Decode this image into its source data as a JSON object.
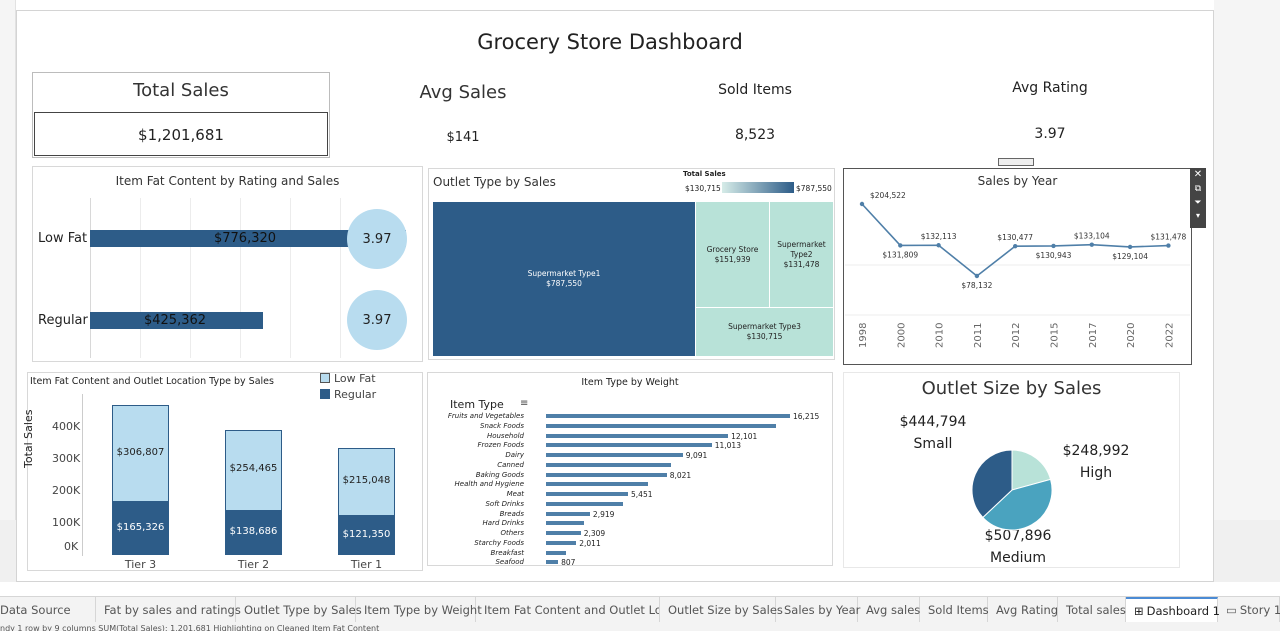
{
  "dashboard": {
    "title": "Grocery Store Dashboard"
  },
  "kpis": {
    "total_sales_label": "Total Sales",
    "total_sales_value": "$1,201,681",
    "avg_sales_label": "Avg Sales",
    "avg_sales_value": "$141",
    "sold_items_label": "Sold Items",
    "sold_items_value": "8,523",
    "avg_rating_label": "Avg Rating",
    "avg_rating_value": "3.97"
  },
  "fat_panel": {
    "title": "Item Fat Content by Rating and Sales",
    "rows": [
      {
        "label": "Low Fat",
        "value": "$776,320",
        "rating": "3.97"
      },
      {
        "label": "Regular",
        "value": "$425,362",
        "rating": "3.97"
      }
    ]
  },
  "outlet_type": {
    "title": "Outlet Type by Sales",
    "legend_title": "Total Sales",
    "legend_min": "$130,715",
    "legend_max": "$787,550",
    "cells": [
      {
        "name": "Supermarket Type1",
        "value": "$787,550"
      },
      {
        "name": "Grocery Store",
        "value": "$151,939"
      },
      {
        "name": "Supermarket Type2",
        "value": "$131,478"
      },
      {
        "name": "Supermarket Type3",
        "value": "$130,715"
      }
    ]
  },
  "sales_year": {
    "title": "Sales by Year",
    "points": [
      {
        "year": "1998",
        "label": "$204,522"
      },
      {
        "year": "2000",
        "label": "$131,809"
      },
      {
        "year": "2010",
        "label": "$132,113"
      },
      {
        "year": "2011",
        "label": "$78,132"
      },
      {
        "year": "2012",
        "label": "$130,477"
      },
      {
        "year": "2015",
        "label": "$130,943"
      },
      {
        "year": "2017",
        "label": "$133,104"
      },
      {
        "year": "2020",
        "label": "$129,104"
      },
      {
        "year": "2022",
        "label": "$131,478"
      }
    ]
  },
  "location_panel": {
    "title": "Item Fat Content and Outlet Location Type by Sales",
    "legend": [
      "Low Fat",
      "Regular"
    ],
    "ylabel": "Total Sales",
    "yticks": [
      "400K",
      "300K",
      "200K",
      "100K",
      "0K"
    ],
    "tiers": [
      {
        "name": "Tier 3",
        "low": "$306,807",
        "regular": "$165,326"
      },
      {
        "name": "Tier 2",
        "low": "$254,465",
        "regular": "$138,686"
      },
      {
        "name": "Tier 1",
        "low": "$215,048",
        "regular": "$121,350"
      }
    ]
  },
  "item_weight": {
    "title": "Item Type by Weight",
    "header": "Item Type",
    "rows": [
      {
        "name": "Fruits and Vegetables",
        "label": "16,215"
      },
      {
        "name": "Snack Foods",
        "label": ""
      },
      {
        "name": "Household",
        "label": "12,101"
      },
      {
        "name": "Frozen Foods",
        "label": "11,013"
      },
      {
        "name": "Dairy",
        "label": "9,091"
      },
      {
        "name": "Canned",
        "label": ""
      },
      {
        "name": "Baking Goods",
        "label": "8,021"
      },
      {
        "name": "Health and Hygiene",
        "label": ""
      },
      {
        "name": "Meat",
        "label": "5,451"
      },
      {
        "name": "Soft Drinks",
        "label": ""
      },
      {
        "name": "Breads",
        "label": "2,919"
      },
      {
        "name": "Hard Drinks",
        "label": ""
      },
      {
        "name": "Others",
        "label": "2,309"
      },
      {
        "name": "Starchy Foods",
        "label": "2,011"
      },
      {
        "name": "Breakfast",
        "label": ""
      },
      {
        "name": "Seafood",
        "label": "807"
      }
    ]
  },
  "outlet_size": {
    "title": "Outlet Size by Sales",
    "small_value": "$444,794",
    "small_label": "Small",
    "high_value": "$248,992",
    "high_label": "High",
    "medium_value": "$507,896",
    "medium_label": "Medium"
  },
  "tabs": [
    "Data Source",
    "Fat by sales and ratings",
    "Outlet Type by Sales",
    "Item Type by Weight",
    "Item Fat Content and Outlet Loc...",
    "Outlet Size by Sales",
    "Sales by Year",
    "Avg sales",
    "Sold Items",
    "Avg Rating",
    "Total sales",
    "Dashboard 1",
    "Story 1"
  ],
  "status": "ndy    1 row by 9 columns    SUM(Total Sales): 1,201,681    Highlighting on Cleaned Item Fat Content",
  "chart_data": [
    {
      "type": "bar",
      "title": "Item Fat Content by Rating and Sales",
      "categories": [
        "Low Fat",
        "Regular"
      ],
      "values": [
        776320,
        425362
      ],
      "ratings": [
        3.97,
        3.97
      ]
    },
    {
      "type": "heatmap",
      "title": "Outlet Type by Sales",
      "categories": [
        "Supermarket Type1",
        "Grocery Store",
        "Supermarket Type2",
        "Supermarket Type3"
      ],
      "values": [
        787550,
        151939,
        131478,
        130715
      ]
    },
    {
      "type": "line",
      "title": "Sales by Year",
      "x": [
        "1998",
        "2000",
        "2010",
        "2011",
        "2012",
        "2015",
        "2017",
        "2020",
        "2022"
      ],
      "values": [
        204522,
        131809,
        132113,
        78132,
        130477,
        130943,
        133104,
        129104,
        131478
      ]
    },
    {
      "type": "bar",
      "title": "Item Fat Content and Outlet Location Type by Sales",
      "categories": [
        "Tier 3",
        "Tier 2",
        "Tier 1"
      ],
      "series": [
        {
          "name": "Low Fat",
          "values": [
            306807,
            254465,
            215048
          ]
        },
        {
          "name": "Regular",
          "values": [
            165326,
            138686,
            121350
          ]
        }
      ],
      "ylabel": "Total Sales",
      "ylim": [
        0,
        450000
      ]
    },
    {
      "type": "bar",
      "title": "Item Type by Weight",
      "categories": [
        "Fruits and Vegetables",
        "Snack Foods",
        "Household",
        "Frozen Foods",
        "Dairy",
        "Canned",
        "Baking Goods",
        "Health and Hygiene",
        "Meat",
        "Soft Drinks",
        "Breads",
        "Hard Drinks",
        "Others",
        "Starchy Foods",
        "Breakfast",
        "Seafood"
      ],
      "values": [
        16215,
        15300,
        12101,
        11013,
        9091,
        8300,
        8021,
        6800,
        5451,
        5100,
        2919,
        2500,
        2309,
        2011,
        1300,
        807
      ]
    },
    {
      "type": "pie",
      "title": "Outlet Size by Sales",
      "categories": [
        "Small",
        "High",
        "Medium"
      ],
      "values": [
        444794,
        248992,
        507896
      ],
      "colors": [
        "#2d5c88",
        "#b8e2d8",
        "#4aa3bf"
      ]
    }
  ]
}
